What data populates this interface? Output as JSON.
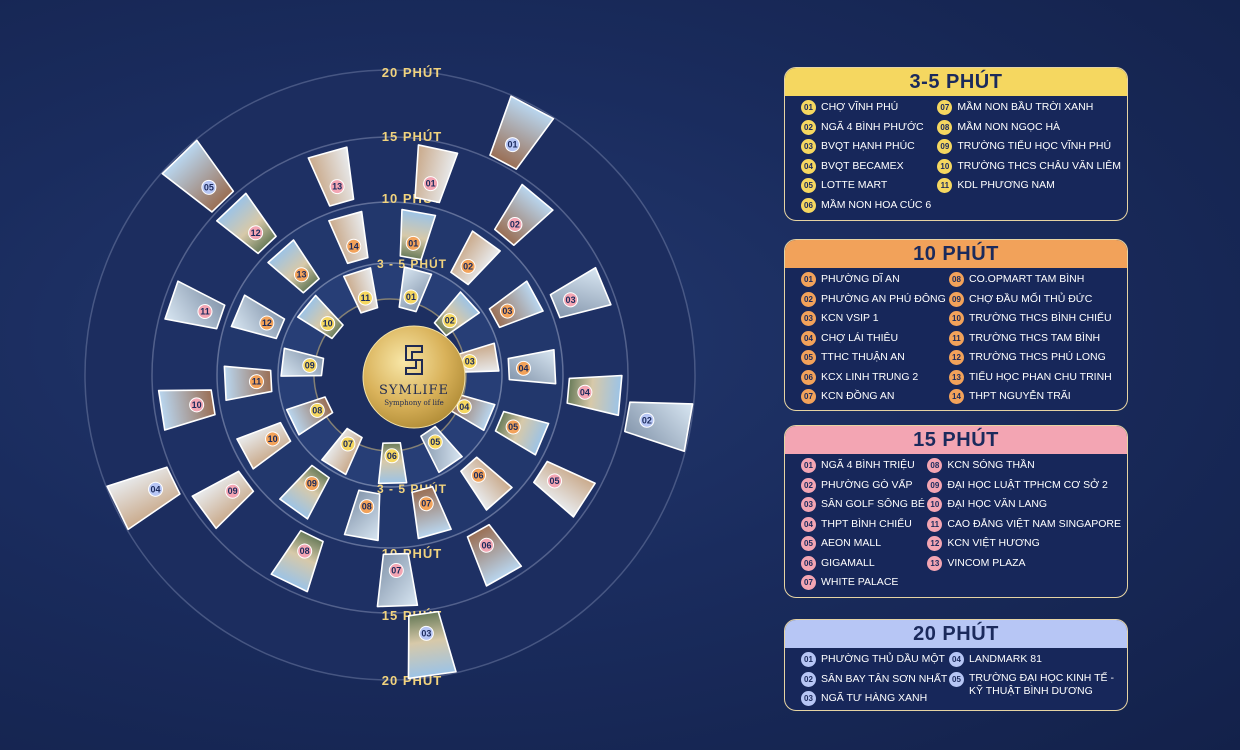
{
  "brand": {
    "name": "SYMLIFE",
    "tagline": "Symphony of life"
  },
  "ring_labels": {
    "r35_top": "3 - 5 PHÚT",
    "r35_bottom": "3 - 5 PHÚT",
    "r10_top": "10 PHÚT",
    "r10_bottom": "10 PHÚT",
    "r15_top": "15 PHÚT",
    "r15_bottom": "15 PHÚT",
    "r20_top": "20 PHÚT",
    "r20_bottom": "20 PHÚT"
  },
  "colors": {
    "ring35": "#f5d760",
    "ring10": "#f2a25a",
    "ring15": "#f3a5b3",
    "ring20": "#b7c6f5",
    "gold": "#e6c76e",
    "background": "#1a2c5e"
  },
  "tiles": {
    "ring35": [
      "01",
      "02",
      "03",
      "04",
      "05",
      "06",
      "07",
      "08",
      "09",
      "10",
      "11"
    ],
    "ring10": [
      "01",
      "02",
      "03",
      "04",
      "05",
      "06",
      "07",
      "08",
      "09",
      "10",
      "11",
      "12",
      "13",
      "14"
    ],
    "ring15": [
      "01",
      "02",
      "03",
      "04",
      "05",
      "06",
      "07",
      "08",
      "09",
      "10",
      "11",
      "12",
      "13"
    ],
    "ring20": [
      "01",
      "02",
      "03",
      "04",
      "05"
    ]
  },
  "panels": {
    "p35": {
      "title": "3-5 PHÚT",
      "left": [
        {
          "num": "01",
          "text": "CHỢ VĨNH PHÚ"
        },
        {
          "num": "02",
          "text": "NGÃ 4 BÌNH PHƯỚC"
        },
        {
          "num": "03",
          "text": "BVQT HẠNH PHÚC"
        },
        {
          "num": "04",
          "text": "BVQT BECAMEX"
        },
        {
          "num": "05",
          "text": "LOTTE MART"
        },
        {
          "num": "06",
          "text": "MẦM NON HOA CÚC 6"
        }
      ],
      "right": [
        {
          "num": "07",
          "text": "MẦM NON BẦU TRỜI XANH"
        },
        {
          "num": "08",
          "text": "MẦM NON NGỌC HÀ"
        },
        {
          "num": "09",
          "text": "TRƯỜNG TIỂU HỌC VĨNH PHÚ"
        },
        {
          "num": "10",
          "text": "TRƯỜNG THCS CHÂU VĂN LIÊM"
        },
        {
          "num": "11",
          "text": "KDL PHƯƠNG NAM"
        }
      ]
    },
    "p10": {
      "title": "10 PHÚT",
      "left": [
        {
          "num": "01",
          "text": "PHƯỜNG DĨ AN"
        },
        {
          "num": "02",
          "text": "PHƯỜNG AN PHÚ ĐÔNG"
        },
        {
          "num": "03",
          "text": "KCN VSIP 1"
        },
        {
          "num": "04",
          "text": "CHỢ LÁI THIÊU"
        },
        {
          "num": "05",
          "text": "TTHC THUẬN AN"
        },
        {
          "num": "06",
          "text": "KCX LINH TRUNG 2"
        },
        {
          "num": "07",
          "text": "KCN ĐỒNG AN"
        }
      ],
      "right": [
        {
          "num": "08",
          "text": "CO.OPMART TAM BÌNH"
        },
        {
          "num": "09",
          "text": "CHỢ ĐẦU MỐI THỦ ĐỨC"
        },
        {
          "num": "10",
          "text": "TRƯỜNG THCS BÌNH CHIỂU"
        },
        {
          "num": "11",
          "text": "TRƯỜNG THCS TAM BÌNH"
        },
        {
          "num": "12",
          "text": "TRƯỜNG THCS PHÚ LONG"
        },
        {
          "num": "13",
          "text": "TIỂU HỌC PHAN CHU TRINH"
        },
        {
          "num": "14",
          "text": "THPT NGUYỄN TRÃI"
        }
      ]
    },
    "p15": {
      "title": "15 PHÚT",
      "left": [
        {
          "num": "01",
          "text": "NGÃ 4 BÌNH TRIỆU"
        },
        {
          "num": "02",
          "text": "PHƯỜNG GÒ VẤP"
        },
        {
          "num": "03",
          "text": "SÂN GOLF SÔNG BÉ"
        },
        {
          "num": "04",
          "text": "THPT BÌNH CHIỂU"
        },
        {
          "num": "05",
          "text": "AEON MALL"
        },
        {
          "num": "06",
          "text": "GIGAMALL"
        },
        {
          "num": "07",
          "text": "WHITE PALACE"
        }
      ],
      "right": [
        {
          "num": "08",
          "text": "KCN SÓNG THẦN"
        },
        {
          "num": "09",
          "text": "ĐẠI HỌC LUẬT TPHCM CƠ SỞ 2"
        },
        {
          "num": "10",
          "text": "ĐẠI HỌC VĂN LANG"
        },
        {
          "num": "11",
          "text": "CAO ĐẲNG VIỆT NAM SINGAPORE"
        },
        {
          "num": "12",
          "text": "KCN VIỆT HƯƠNG"
        },
        {
          "num": "13",
          "text": "VINCOM PLAZA"
        }
      ]
    },
    "p20": {
      "title": "20 PHÚT",
      "left": [
        {
          "num": "01",
          "text": "PHƯỜNG THỦ DẦU MỘT"
        },
        {
          "num": "02",
          "text": "SÂN BAY TÂN SƠN NHẤT"
        },
        {
          "num": "03",
          "text": "NGÃ TƯ HÀNG XANH"
        }
      ],
      "right": [
        {
          "num": "04",
          "text": "LANDMARK 81"
        },
        {
          "num": "05",
          "text": "TRƯỜNG ĐẠI HỌC KINH TẾ - KỸ THUẬT BÌNH DƯƠNG"
        }
      ]
    }
  }
}
